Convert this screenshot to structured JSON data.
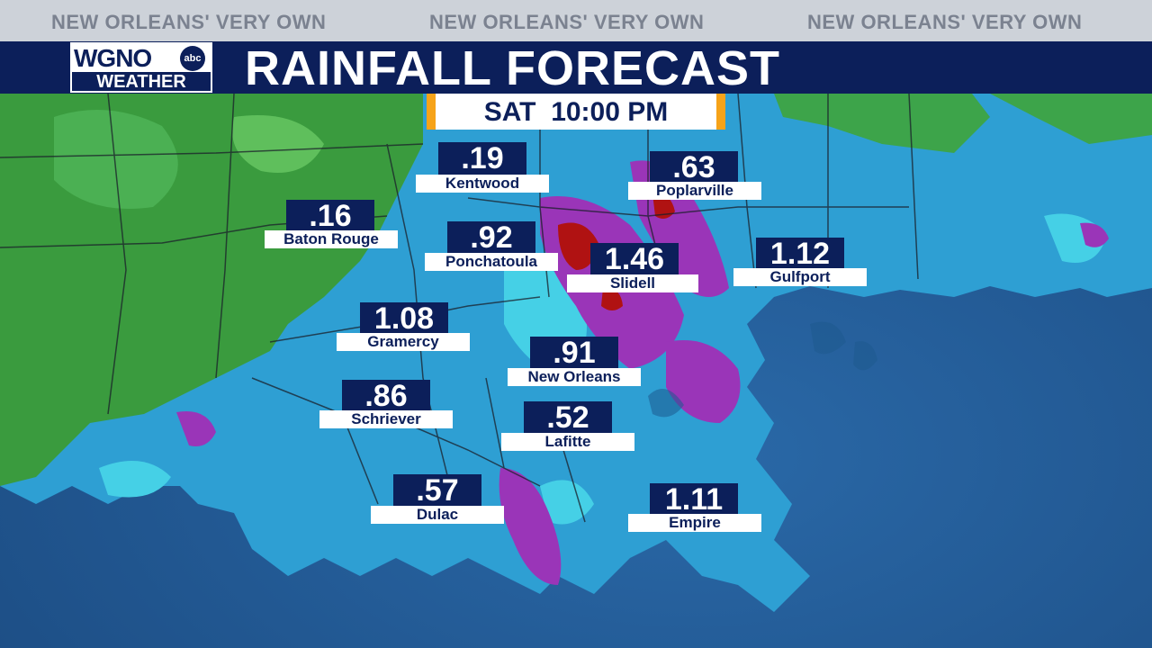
{
  "ticker": [
    "NEW ORLEANS' VERY OWN",
    "NEW ORLEANS' VERY OWN",
    "NEW ORLEANS' VERY OWN"
  ],
  "logo": {
    "station": "WGNO",
    "network": "abc",
    "sub": "WEATHER"
  },
  "title": "RAINFALL FORECAST",
  "time": {
    "day": "SAT",
    "clock": "10:00 PM"
  },
  "colors": {
    "navy": "#0c1f5a",
    "accent": "#f6a319",
    "water": "#1d4f86",
    "light_rain": "#2aa4d8",
    "moderate_rain": "#9a35b8",
    "heavy_rain": "#b01212",
    "dry_land": "#3a9b3e"
  },
  "locations": [
    {
      "id": "kentwood",
      "value": ".19",
      "name": "Kentwood"
    },
    {
      "id": "poplarville",
      "value": ".63",
      "name": "Poplarville"
    },
    {
      "id": "baton-rouge",
      "value": ".16",
      "name": "Baton Rouge"
    },
    {
      "id": "ponchatoula",
      "value": ".92",
      "name": "Ponchatoula"
    },
    {
      "id": "slidell",
      "value": "1.46",
      "name": "Slidell"
    },
    {
      "id": "gulfport",
      "value": "1.12",
      "name": "Gulfport"
    },
    {
      "id": "gramercy",
      "value": "1.08",
      "name": "Gramercy"
    },
    {
      "id": "new-orleans",
      "value": ".91",
      "name": "New Orleans"
    },
    {
      "id": "schriever",
      "value": ".86",
      "name": "Schriever"
    },
    {
      "id": "lafitte",
      "value": ".52",
      "name": "Lafitte"
    },
    {
      "id": "dulac",
      "value": ".57",
      "name": "Dulac"
    },
    {
      "id": "empire",
      "value": "1.11",
      "name": "Empire"
    }
  ]
}
